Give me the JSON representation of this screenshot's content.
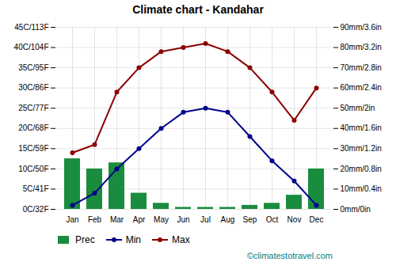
{
  "chart_data": {
    "type": "combo",
    "title": "Climate chart - Kandahar",
    "categories": [
      "Jan",
      "Feb",
      "Mar",
      "Apr",
      "May",
      "Jun",
      "Jul",
      "Aug",
      "Sep",
      "Oct",
      "Nov",
      "Dec"
    ],
    "series": [
      {
        "name": "Prec",
        "type": "bar",
        "axis": "y2",
        "color": "#1a8c3e",
        "values": [
          25,
          20,
          23,
          8,
          3,
          1,
          1,
          1,
          2,
          3,
          7,
          20
        ]
      },
      {
        "name": "Min",
        "type": "line",
        "marker": "circle",
        "color": "#00008B",
        "values": [
          1,
          4,
          10,
          15,
          20,
          24,
          25,
          24,
          18,
          12,
          7,
          1
        ]
      },
      {
        "name": "Max",
        "type": "line",
        "marker": "circle",
        "color": "#8B0000",
        "values": [
          14,
          16,
          29,
          35,
          39,
          40,
          41,
          39,
          35,
          29,
          22,
          30
        ]
      }
    ],
    "ylim": [
      0,
      45
    ],
    "yticks": [
      {
        "value": 0,
        "label": "0C/32F"
      },
      {
        "value": 5,
        "label": "5C/41F"
      },
      {
        "value": 10,
        "label": "10C/50F"
      },
      {
        "value": 15,
        "label": "15C/59F"
      },
      {
        "value": 20,
        "label": "20C/68F"
      },
      {
        "value": 25,
        "label": "25C/77F"
      },
      {
        "value": 30,
        "label": "30C/86F"
      },
      {
        "value": 35,
        "label": "35C/95F"
      },
      {
        "value": 40,
        "label": "40C/104F"
      },
      {
        "value": 45,
        "label": "45C/113F"
      }
    ],
    "y2lim": [
      0,
      90
    ],
    "y2ticks": [
      {
        "value": 0,
        "label": "0mm/0in"
      },
      {
        "value": 10,
        "label": "10mm/0.4in"
      },
      {
        "value": 20,
        "label": "20mm/0.8in"
      },
      {
        "value": 30,
        "label": "30mm/1.2in"
      },
      {
        "value": 40,
        "label": "40mm/1.6in"
      },
      {
        "value": 50,
        "label": "50mm/2in"
      },
      {
        "value": 60,
        "label": "60mm/2.4in"
      },
      {
        "value": 70,
        "label": "70mm/2.8in"
      },
      {
        "value": 80,
        "label": "80mm/3.2in"
      },
      {
        "value": 90,
        "label": "90mm/3.6in"
      }
    ],
    "grid": true,
    "legend": "bottom",
    "annotations": [
      "©climatestotravel.com"
    ]
  }
}
